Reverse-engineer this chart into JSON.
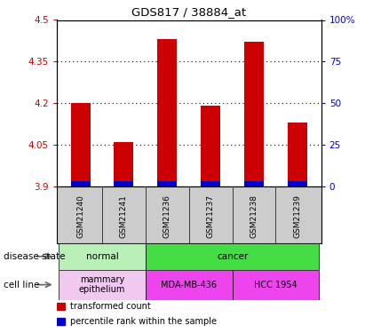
{
  "title": "GDS817 / 38884_at",
  "samples": [
    "GSM21240",
    "GSM21241",
    "GSM21236",
    "GSM21237",
    "GSM21238",
    "GSM21239"
  ],
  "transformed_counts": [
    4.2,
    4.06,
    4.43,
    4.19,
    4.42,
    4.13
  ],
  "percentile_ranks": [
    3,
    3,
    3,
    3,
    3,
    3
  ],
  "base_value": 3.9,
  "ylim_left": [
    3.9,
    4.5
  ],
  "ylim_right": [
    0,
    100
  ],
  "yticks_left": [
    3.9,
    4.05,
    4.2,
    4.35,
    4.5
  ],
  "ytick_labels_left": [
    "3.9",
    "4.05",
    "4.2",
    "4.35",
    "4.5"
  ],
  "yticks_right": [
    0,
    25,
    50,
    75,
    100
  ],
  "ytick_labels_right": [
    "0",
    "25",
    "50",
    "75",
    "100%"
  ],
  "disease_state_groups": [
    {
      "label": "normal",
      "start": 0,
      "end": 2,
      "color": "#b8f0b8"
    },
    {
      "label": "cancer",
      "start": 2,
      "end": 6,
      "color": "#44dd44"
    }
  ],
  "cell_line_groups": [
    {
      "label": "mammary\nepithelium",
      "start": 0,
      "end": 2,
      "color": "#f0c8f0"
    },
    {
      "label": "MDA-MB-436",
      "start": 2,
      "end": 4,
      "color": "#ee44ee"
    },
    {
      "label": "HCC 1954",
      "start": 4,
      "end": 6,
      "color": "#ee44ee"
    }
  ],
  "bar_color": "#cc0000",
  "percentile_color": "#0000cc",
  "bar_width": 0.45,
  "grid_linestyle": "dotted",
  "grid_color": "#000000",
  "grid_alpha": 0.5,
  "bg_color": "#cccccc",
  "plot_bg_color": "#ffffff",
  "left_label_color": "#cc0000",
  "right_label_color": "#0000cc",
  "legend_items": [
    {
      "color": "#cc0000",
      "label": "transformed count"
    },
    {
      "color": "#0000cc",
      "label": "percentile rank within the sample"
    }
  ],
  "disease_label": "disease state",
  "cell_line_label": "cell line"
}
